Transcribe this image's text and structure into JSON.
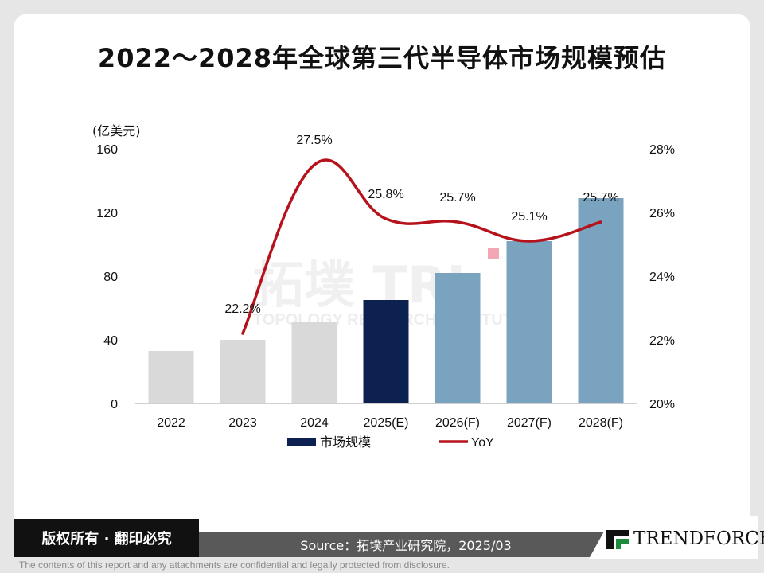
{
  "title": "2022～2028年全球第三代半导体市场规模预估",
  "footer": {
    "copyright": "版权所有 · 翻印必究",
    "source": "Source：拓墣产业研究院，2025/03",
    "logo": "TRENDFORCE",
    "disclaimer": "The contents of this report and any attachments are confidential and legally protected from disclosure."
  },
  "watermark": {
    "text": "TOPOLOGY RESEARCH INSTITUTE"
  },
  "chart_data": {
    "type": "bar",
    "categories": [
      "2022",
      "2023",
      "2024",
      "2025(E)",
      "2026(F)",
      "2027(F)",
      "2028(F)"
    ],
    "series": [
      {
        "name": "市场规模",
        "type": "bar",
        "values": [
          33,
          40,
          51,
          65,
          82,
          102,
          129
        ],
        "colors": [
          "#d9d9d9",
          "#d9d9d9",
          "#d9d9d9",
          "#0d2150",
          "#7aa3bf",
          "#7aa3bf",
          "#7aa3bf"
        ]
      },
      {
        "name": "YoY",
        "type": "line",
        "axis": "right",
        "color": "#b5121b",
        "values": [
          null,
          22.2,
          27.5,
          25.8,
          25.7,
          25.1,
          25.7
        ],
        "labels": [
          "",
          "22.2%",
          "27.5%",
          "25.8%",
          "25.7%",
          "25.1%",
          "25.7%"
        ]
      }
    ],
    "ylabel_left": "(亿美元)",
    "ylim_left": [
      0,
      160
    ],
    "yticks_left": [
      "0",
      "40",
      "80",
      "120",
      "160"
    ],
    "ylim_right": [
      20,
      28
    ],
    "yticks_right": [
      "20%",
      "22%",
      "24%",
      "26%",
      "28%"
    ],
    "legend": [
      "市场规模",
      "YoY"
    ],
    "legend_position": "bottom"
  }
}
